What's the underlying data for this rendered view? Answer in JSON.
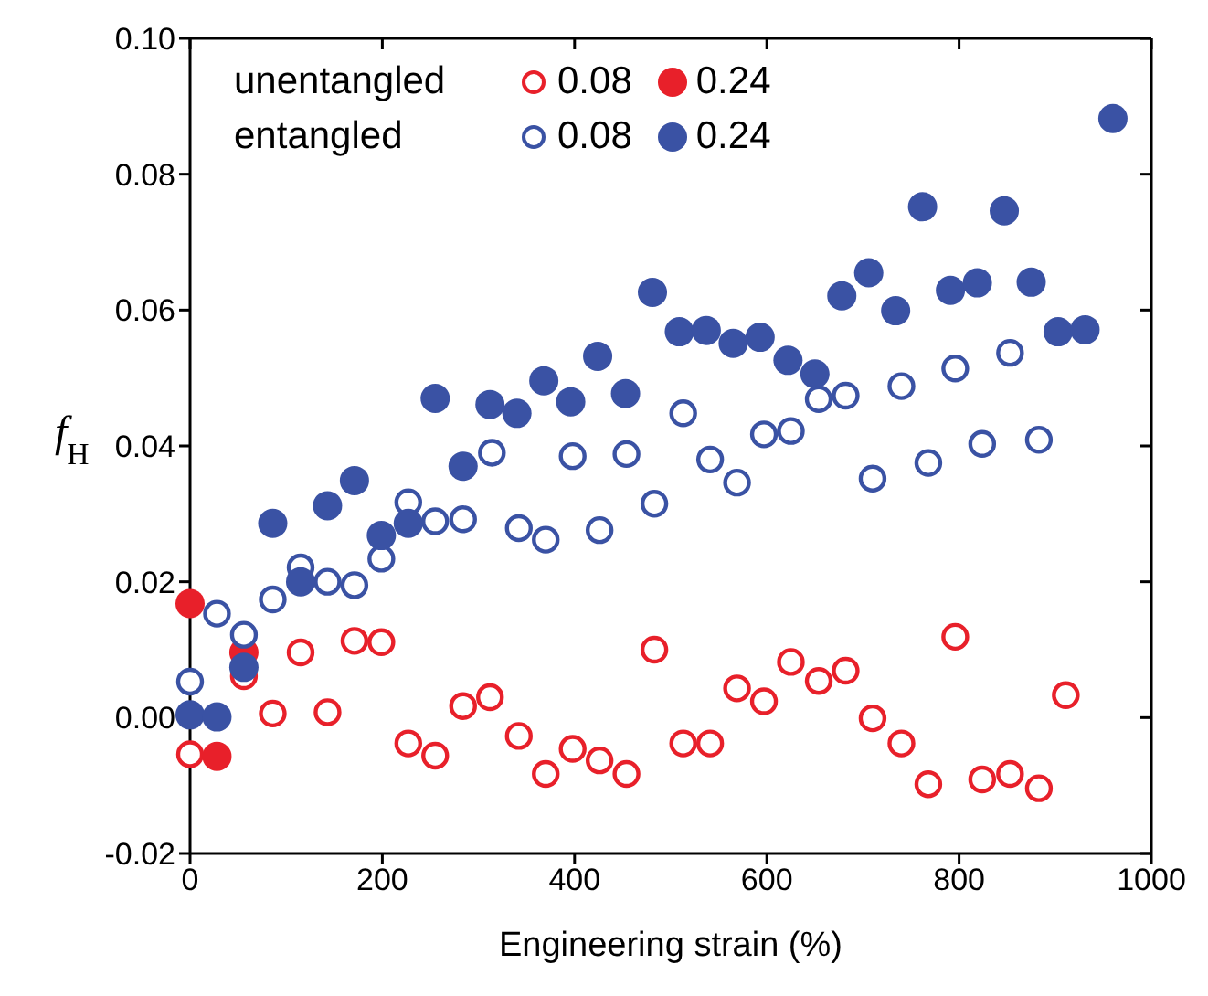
{
  "chart_data": {
    "type": "scatter",
    "xlabel": "Engineering strain (%)",
    "ylabel": "f$_{H}$",
    "annotations": [
      "unentangled",
      "entangled"
    ],
    "xlim": [
      0,
      1000
    ],
    "xticks": [
      0,
      200,
      400,
      600,
      800,
      1000
    ],
    "ylim": [
      -0.02,
      0.1
    ],
    "yticks": [
      {
        "value": -0.02,
        "label": "-0.02"
      },
      {
        "value": 0,
        "label": "0.00"
      },
      0.02,
      0.04,
      0.06,
      0.08,
      {
        "value": 0.1,
        "label": "0.10"
      }
    ],
    "marker": "circle",
    "legend": "top left",
    "grid": false,
    "series": [
      {
        "name": "0.08",
        "color": "#e8202a",
        "x": [
          0,
          56,
          86,
          115,
          143,
          171,
          199,
          227,
          255,
          284,
          312,
          342,
          370,
          398,
          426,
          454,
          483,
          513,
          541,
          569,
          597,
          625,
          654,
          682,
          710,
          740,
          768,
          796,
          824,
          853,
          883,
          911
        ],
        "values": [
          -0.0054,
          0.0061,
          0.0006,
          0.0096,
          0.0008,
          0.0113,
          0.0111,
          -0.0038,
          -0.0056,
          0.0017,
          0.003,
          -0.0027,
          -0.0083,
          -0.0046,
          -0.0063,
          -0.0083,
          0.01,
          -0.0038,
          -0.0038,
          0.0043,
          0.0024,
          0.0082,
          0.0054,
          0.0069,
          -0.0001,
          -0.0038,
          -0.0098,
          0.0119,
          -0.0091,
          -0.0083,
          -0.0104,
          0.0033
        ]
      },
      {
        "name": "0.24",
        "color": "#e8202a",
        "x": [
          0,
          28,
          56
        ],
        "values": [
          0.0168,
          -0.0057,
          0.0096
        ]
      },
      {
        "name": "0.08",
        "color": "#3a52a4",
        "x": [
          0,
          28,
          56,
          86,
          115,
          143,
          171,
          199,
          227,
          255,
          284,
          314,
          342,
          370,
          398,
          426,
          454,
          483,
          513,
          541,
          569,
          597,
          625,
          654,
          682,
          710,
          740,
          768,
          796,
          824,
          853,
          883
        ],
        "values": [
          0.0053,
          0.0153,
          0.0122,
          0.0174,
          0.0221,
          0.02,
          0.0195,
          0.0234,
          0.0317,
          0.0289,
          0.0292,
          0.039,
          0.0279,
          0.0262,
          0.0385,
          0.0276,
          0.0388,
          0.0315,
          0.0448,
          0.038,
          0.0346,
          0.0417,
          0.0422,
          0.0469,
          0.0474,
          0.0352,
          0.0488,
          0.0375,
          0.0514,
          0.0403,
          0.0537,
          0.0409
        ]
      },
      {
        "name": "0.24",
        "color": "#3a52a4",
        "x": [
          0,
          28,
          56,
          86,
          115,
          143,
          171,
          199,
          227,
          255,
          284,
          312,
          340,
          368,
          396,
          424,
          453,
          481,
          509,
          537,
          565,
          593,
          622,
          650,
          678,
          706,
          734,
          762,
          791,
          819,
          847,
          875,
          903,
          931,
          960
        ],
        "values": [
          0.0004,
          0.0001,
          0.0074,
          0.0286,
          0.02,
          0.0312,
          0.0349,
          0.0268,
          0.0286,
          0.047,
          0.037,
          0.0461,
          0.0448,
          0.0496,
          0.0465,
          0.0532,
          0.0477,
          0.0626,
          0.0568,
          0.057,
          0.0551,
          0.056,
          0.0526,
          0.0506,
          0.0621,
          0.0655,
          0.0599,
          0.0752,
          0.0629,
          0.064,
          0.0746,
          0.0641,
          0.0568,
          0.0571,
          0.0882
        ]
      }
    ]
  }
}
